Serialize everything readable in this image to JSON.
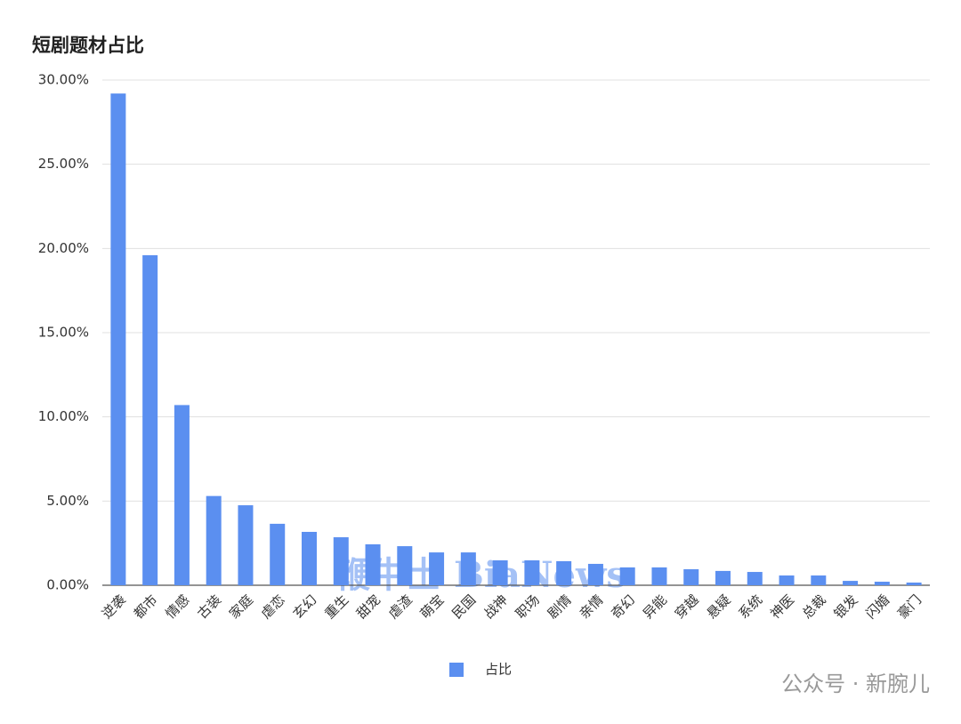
{
  "chart_data": {
    "type": "bar",
    "title": "短剧题材占比",
    "categories": [
      "逆袭",
      "都市",
      "情感",
      "古装",
      "家庭",
      "虐恋",
      "玄幻",
      "重生",
      "甜宠",
      "虐渣",
      "萌宝",
      "民国",
      "战神",
      "职场",
      "剧情",
      "亲情",
      "奇幻",
      "异能",
      "穿越",
      "悬疑",
      "系统",
      "神医",
      "总裁",
      "银发",
      "闪婚",
      "豪门"
    ],
    "series": [
      {
        "name": "占比",
        "color": "#5b8ff0",
        "values": [
          29.2,
          19.6,
          10.7,
          5.3,
          4.75,
          3.65,
          3.17,
          2.85,
          2.43,
          2.32,
          1.95,
          1.95,
          1.48,
          1.48,
          1.43,
          1.27,
          1.06,
          1.06,
          0.95,
          0.85,
          0.79,
          0.58,
          0.58,
          0.26,
          0.21,
          0.16
        ]
      }
    ],
    "ylim": [
      0,
      30
    ],
    "yticks": [
      {
        "value": 0,
        "label": "0.00%"
      },
      {
        "value": 5,
        "label": "5.00%"
      },
      {
        "value": 10,
        "label": "10.00%"
      },
      {
        "value": 15,
        "label": "15.00%"
      },
      {
        "value": 20,
        "label": "20.00%"
      },
      {
        "value": 25,
        "label": "25.00%"
      },
      {
        "value": 30,
        "label": "30.00%"
      }
    ],
    "grid": true,
    "watermarks": [
      "鞭牛士 BiaNews",
      "公众号 · 新腕儿"
    ]
  }
}
